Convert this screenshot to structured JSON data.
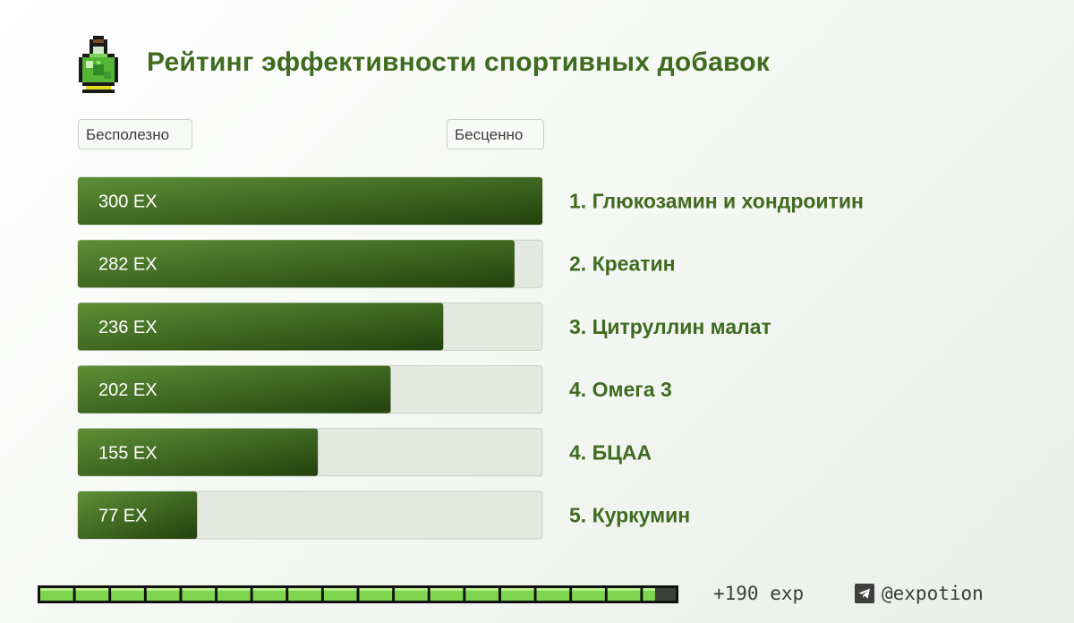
{
  "header": {
    "title": "Рейтинг эффективности спортивных добавок",
    "logo_icon": "potion-bottle-icon"
  },
  "scale": {
    "min_label": "Бесполезно",
    "max_label": "Бесценно"
  },
  "chart_data": {
    "type": "bar",
    "orientation": "horizontal",
    "title": "Рейтинг эффективности спортивных добавок",
    "xlim": [
      0,
      300
    ],
    "grid": false,
    "categories": [
      "1. Глюкозамин и хондроитин",
      "2. Креатин",
      "3. Цитруллин малат",
      "4. Омега 3",
      "4. БЦАА",
      "5. Куркумин"
    ],
    "values": [
      300,
      282,
      236,
      202,
      155,
      77
    ],
    "value_labels": [
      "300 EX",
      "282 EX",
      "236 EX",
      "202 EX",
      "155 EX",
      "77 EX"
    ],
    "colors": {
      "fill_light": "#5e8f36",
      "fill_dark": "#22420d",
      "track": "#e3e9e1",
      "category_text": "#3f6b1f"
    }
  },
  "footer": {
    "xp_progress": 0.965,
    "xp_segments": 18,
    "exp_text": "+190 exp",
    "telegram_icon": "telegram-icon",
    "handle": "@expotion"
  }
}
